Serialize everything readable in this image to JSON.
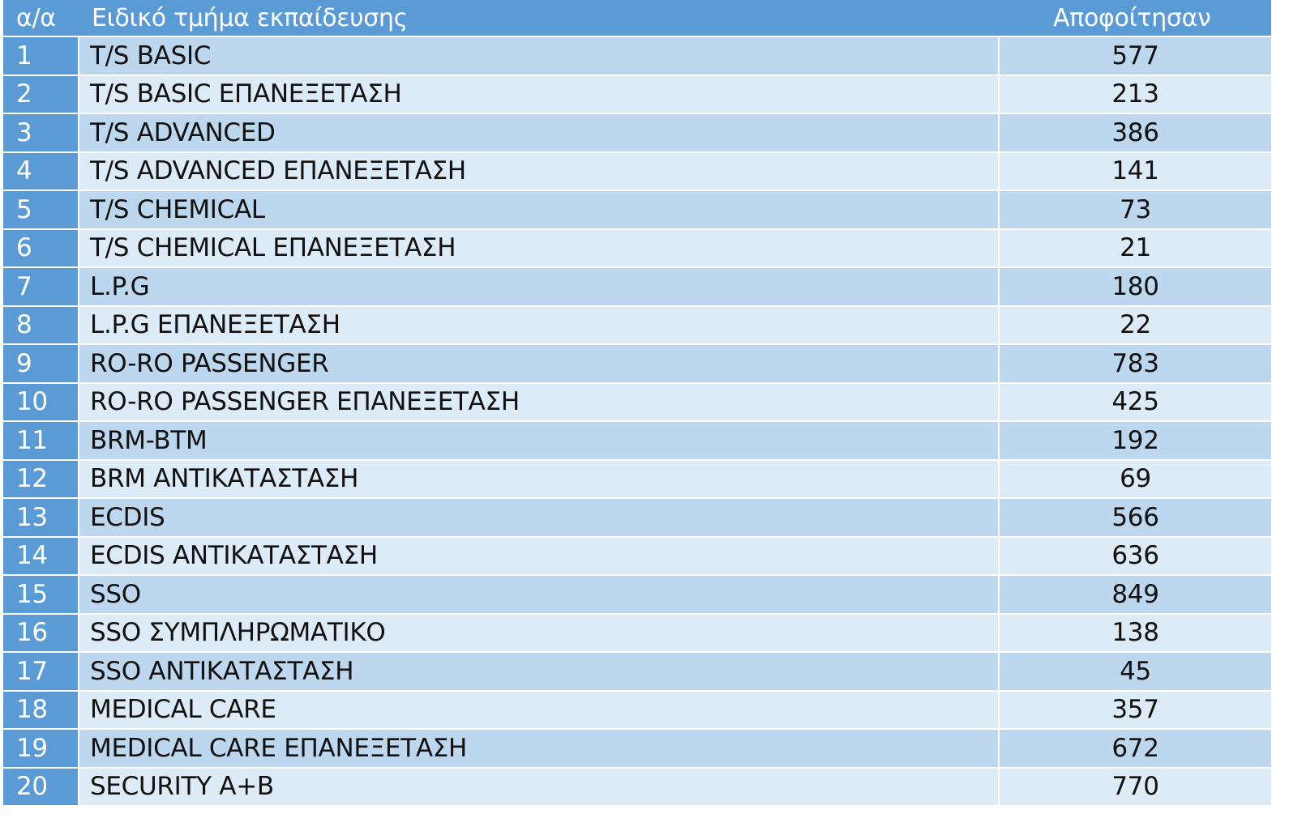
{
  "header": {
    "col_num": "α/α",
    "col_name": "Ειδικό τμήμα εκπαίδευσης",
    "col_count": "Αποφοίτησαν"
  },
  "rows": [
    {
      "num": "1",
      "name": "T/S BASIC",
      "count": "577"
    },
    {
      "num": "2",
      "name": "T/S BASIC ΕΠΑΝΕΞΕΤΑΣΗ",
      "count": "213"
    },
    {
      "num": "3",
      "name": "T/S ADVANCED",
      "count": "386"
    },
    {
      "num": "4",
      "name": "T/S ADVANCED ΕΠΑΝΕΞΕΤΑΣΗ",
      "count": "141"
    },
    {
      "num": "5",
      "name": "T/S CHEMICAL",
      "count": "73"
    },
    {
      "num": "6",
      "name": "T/S CHEMICAL ΕΠΑΝΕΞΕΤΑΣΗ",
      "count": "21"
    },
    {
      "num": "7",
      "name": "L.P.G",
      "count": "180"
    },
    {
      "num": "8",
      "name": "L.P.G ΕΠΑΝΕΞΕΤΑΣΗ",
      "count": "22"
    },
    {
      "num": "9",
      "name": "RO-RO PASSENGER",
      "count": "783"
    },
    {
      "num": "10",
      "name": "RO-RO PASSENGER ΕΠΑΝΕΞΕΤΑΣΗ",
      "count": "425"
    },
    {
      "num": "11",
      "name": "BRM-BTM",
      "count": "192"
    },
    {
      "num": "12",
      "name": "BRM ΑΝΤΙΚΑΤΑΣΤΑΣΗ",
      "count": "69"
    },
    {
      "num": "13",
      "name": "ECDIS",
      "count": "566"
    },
    {
      "num": "14",
      "name": "ECDIS ΑΝΤΙΚΑΤΑΣΤΑΣΗ",
      "count": "636"
    },
    {
      "num": "15",
      "name": "SSO",
      "count": "849"
    },
    {
      "num": "16",
      "name": "SSO ΣΥΜΠΛΗΡΩΜΑΤΙΚΟ",
      "count": "138"
    },
    {
      "num": "17",
      "name": "SSO ΑΝΤΙΚΑΤΑΣΤΑΣΗ",
      "count": "45"
    },
    {
      "num": "18",
      "name": "MEDICAL CARE",
      "count": "357"
    },
    {
      "num": "19",
      "name": "MEDICAL CARE ΕΠΑΝΕΞΕΤΑΣΗ",
      "count": "672"
    },
    {
      "num": "20",
      "name": "SECURITY A+B",
      "count": "770"
    }
  ],
  "colors": {
    "header_bg": "#5b9bd5",
    "row_odd_bg": "#bdd7ee",
    "row_even_bg": "#ddebf7"
  }
}
